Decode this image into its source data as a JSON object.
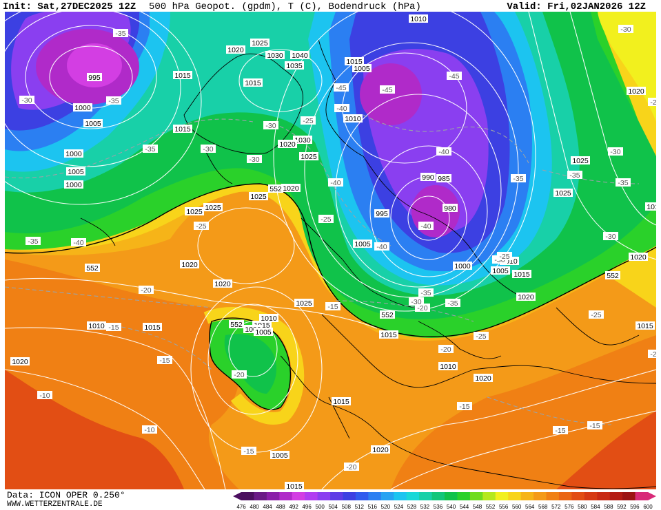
{
  "header": {
    "init": "Init: Sat,27DEC2025 12Z",
    "params": "500 hPa Geopot. (gpdm), T (C), Bodendruck (hPa)",
    "valid": "Valid: Fri,02JAN2026 12Z"
  },
  "footer": {
    "data": "Data: ICON OPER 0.250°",
    "site": "WWW.WETTERZENTRALE.DE"
  },
  "legend": {
    "labels": [
      "476",
      "480",
      "484",
      "488",
      "492",
      "496",
      "500",
      "504",
      "508",
      "512",
      "516",
      "520",
      "524",
      "528",
      "532",
      "536",
      "540",
      "544",
      "548",
      "552",
      "556",
      "560",
      "564",
      "568",
      "572",
      "576",
      "580",
      "584",
      "588",
      "592",
      "596",
      "600"
    ],
    "colors": [
      "#4b0f5f",
      "#6a1a86",
      "#8a1ea9",
      "#b02ac9",
      "#d33ee3",
      "#b13df1",
      "#8a3ff0",
      "#5f3ce6",
      "#3c40e2",
      "#2f5bee",
      "#2b7ff2",
      "#27a3f2",
      "#1cc4f0",
      "#18d8d8",
      "#18d0a8",
      "#12c67a",
      "#10c24a",
      "#2ad12a",
      "#6fdc1e",
      "#b5e81e",
      "#f2f01e",
      "#f8d41a",
      "#f6b418",
      "#f49a18",
      "#f08014",
      "#ea6614",
      "#e24e14",
      "#d63a14",
      "#c82a14",
      "#b41c14",
      "#9c1414",
      "#d82a78"
    ]
  },
  "pressure_labels": [
    "1010",
    "1025",
    "1020",
    "1030",
    "1040",
    "1015",
    "1005",
    "1035",
    "995",
    "1000",
    "1015",
    "1005",
    "1000",
    "1015",
    "1030",
    "1020",
    "1010",
    "1015",
    "1005",
    "1000",
    "1025",
    "1020",
    "1025",
    "1025",
    "990",
    "985",
    "980",
    "1005",
    "995",
    "1000",
    "1010",
    "1005",
    "1020",
    "1025",
    "1015",
    "1010",
    "1015",
    "1000",
    "1010",
    "1005",
    "1015",
    "1020",
    "1015",
    "1020",
    "1010",
    "1005",
    "1015",
    "1020",
    "1020",
    "1025",
    "1025",
    "1020",
    "1025",
    "1015",
    "1020",
    "1010",
    "1020",
    "1015",
    "1015"
  ],
  "temperature_labels": [
    "-35",
    "-30",
    "-35",
    "-30",
    "-35",
    "-30",
    "-30",
    "-25",
    "-40",
    "-45",
    "-40",
    "-45",
    "-45",
    "-40",
    "-35",
    "-30",
    "-35",
    "-35",
    "-40",
    "-40",
    "-35",
    "-30",
    "-25",
    "-25",
    "-25",
    "-20",
    "-20",
    "-20",
    "-15",
    "-15",
    "-20",
    "-15",
    "-10",
    "-10",
    "-15",
    "-15",
    "-20",
    "-15",
    "-15",
    "-25",
    "-30",
    "-35",
    "-30",
    "-25",
    "-40",
    "-30",
    "-35",
    "-25",
    "-25"
  ],
  "geopotential_labels": [
    "552",
    "552",
    "552",
    "552",
    "552"
  ]
}
